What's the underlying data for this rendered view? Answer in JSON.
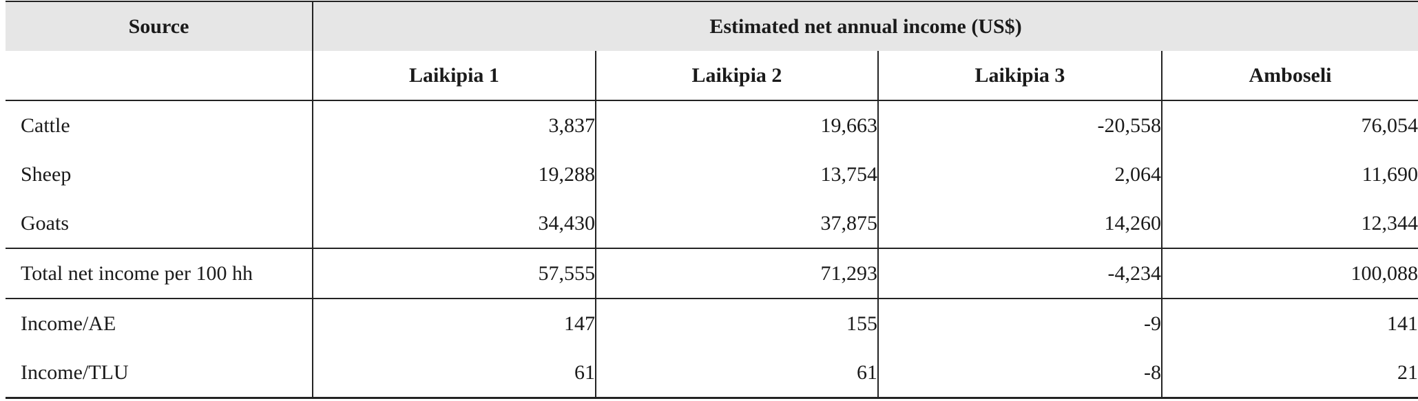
{
  "header": {
    "source_label": "Source",
    "group_label": "Estimated net annual income (US$)",
    "columns": [
      "Laikipia 1",
      "Laikipia 2",
      "Laikipia 3",
      "Amboseli"
    ]
  },
  "rows": [
    {
      "label": "Cattle",
      "values": [
        "3,837",
        "19,663",
        "-20,558",
        "76,054"
      ]
    },
    {
      "label": "Sheep",
      "values": [
        "19,288",
        "13,754",
        "2,064",
        "11,690"
      ]
    },
    {
      "label": "Goats",
      "values": [
        "34,430",
        "37,875",
        "14,260",
        "12,344"
      ]
    },
    {
      "label": "Total net income per 100 hh",
      "values": [
        "57,555",
        "71,293",
        "-4,234",
        "100,088"
      ]
    },
    {
      "label": "Income/AE",
      "values": [
        "147",
        "155",
        "-9",
        "141"
      ]
    },
    {
      "label": "Income/TLU",
      "values": [
        "61",
        "61",
        "-8",
        "21"
      ]
    }
  ]
}
